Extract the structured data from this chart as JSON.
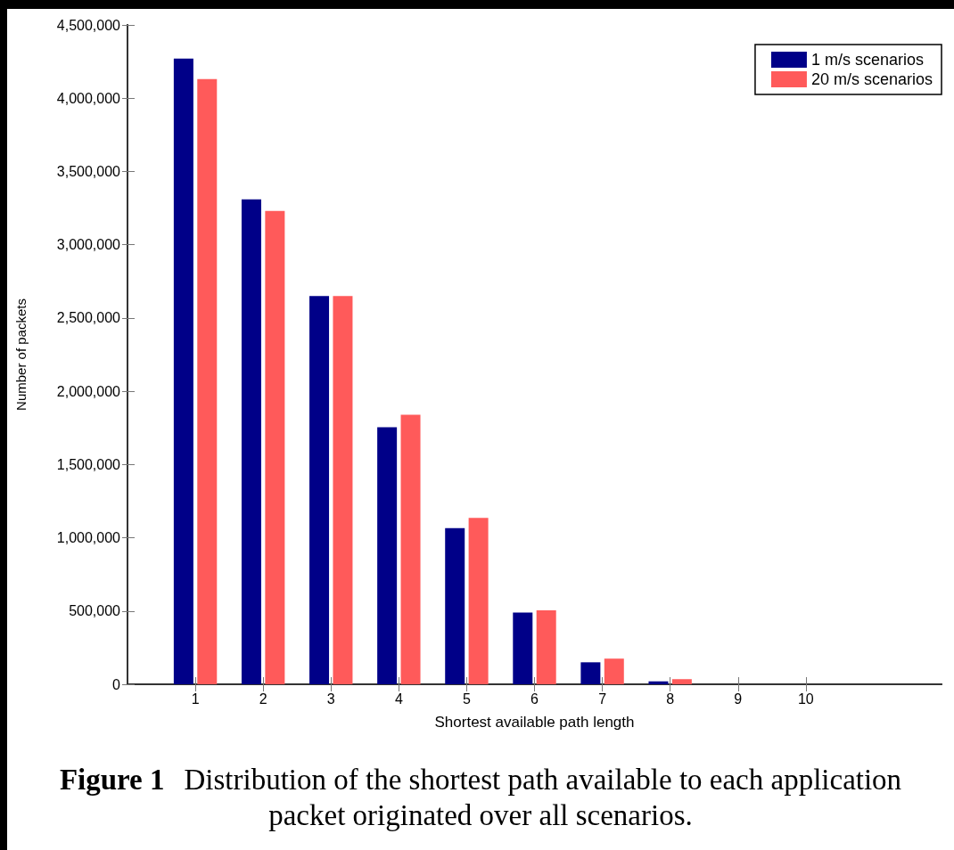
{
  "chart_data": {
    "type": "bar",
    "x": [
      1,
      2,
      3,
      4,
      5,
      6,
      7,
      8,
      9,
      10
    ],
    "series": [
      {
        "name": "1 m/s scenarios",
        "color": "#000088",
        "values": [
          4270000,
          3310000,
          2650000,
          1755000,
          1065000,
          490000,
          150000,
          20000,
          0,
          0
        ]
      },
      {
        "name": "20 m/s scenarios",
        "color": "#ff5a5a",
        "values": [
          4130000,
          3230000,
          2650000,
          1840000,
          1135000,
          505000,
          175000,
          35000,
          0,
          0
        ]
      }
    ],
    "xlabel": "Shortest available path length",
    "ylabel": "Number of packets",
    "xlim": [
      0,
      12
    ],
    "xticks": [
      1,
      2,
      3,
      4,
      5,
      6,
      7,
      8,
      9,
      10
    ],
    "ylim": [
      0,
      4500000
    ],
    "yticks": [
      0,
      {
        "value": 500000,
        "label": "500,000"
      },
      {
        "value": 1000000,
        "label": "1,000,000"
      },
      {
        "value": 1500000,
        "label": "1,500,000"
      },
      {
        "value": 2000000,
        "label": "2,000,000"
      },
      {
        "value": 2500000,
        "label": "2,500,000"
      },
      {
        "value": 3000000,
        "label": "3,000,000"
      },
      {
        "value": 3500000,
        "label": "3,500,000"
      },
      {
        "value": 4000000,
        "label": "4,000,000"
      },
      {
        "value": 4500000,
        "label": "4,500,000"
      }
    ],
    "grid": false,
    "legend": "top right",
    "annotations": [
      "Figure 1",
      "Distribution of the shortest path available to each application packet originated over all scenarios."
    ]
  }
}
